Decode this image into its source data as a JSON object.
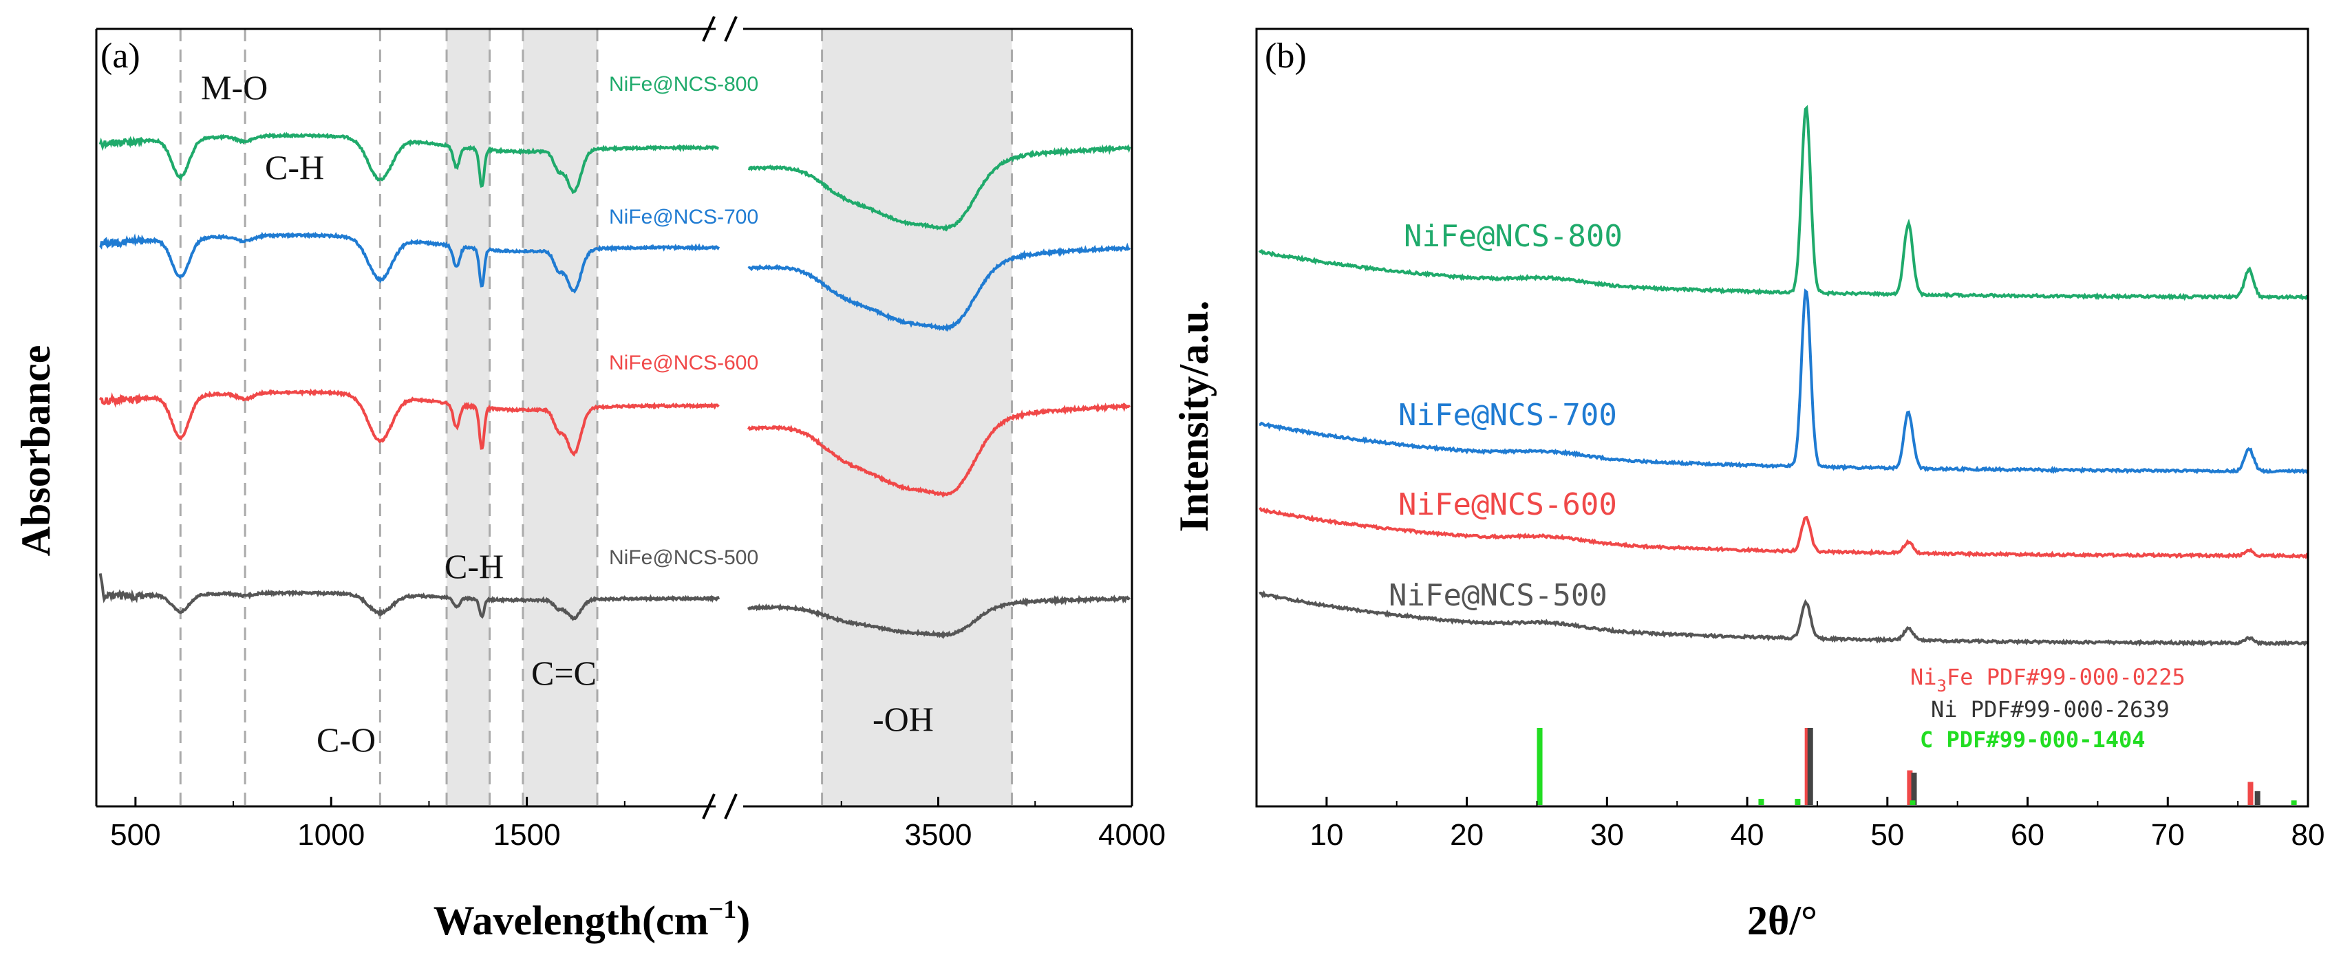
{
  "chart_data": [
    {
      "panel": "(a)",
      "type": "line",
      "xlabel": "Wavelength(cm⁻¹)",
      "ylabel": "Absorbance",
      "xlim_segments": [
        [
          400,
          2000
        ],
        [
          3000,
          4000
        ]
      ],
      "axis_break": true,
      "xticks": [
        500,
        1000,
        1500,
        3500,
        4000
      ],
      "tick_labels": [
        "500",
        "1000",
        "1500",
        "3500",
        "4000"
      ],
      "vlines": [
        615,
        780,
        1125,
        1295,
        1405,
        1490,
        1680,
        3200,
        3690
      ],
      "shaded_regions": [
        [
          1295,
          1405
        ],
        [
          1490,
          1680
        ],
        [
          3200,
          3690
        ]
      ],
      "annotations": [
        "M-O",
        "C-H",
        "C-O",
        "C-H",
        "C=C",
        "-OH"
      ],
      "series": [
        {
          "name": "NiFe@NCS-800",
          "color": "#1faa6b",
          "offset": 3
        },
        {
          "name": "NiFe@NCS-700",
          "color": "#1f7bd2",
          "offset": 2
        },
        {
          "name": "NiFe@NCS-600",
          "color": "#f04848",
          "offset": 1
        },
        {
          "name": "NiFe@NCS-500",
          "color": "#555555",
          "offset": 0
        }
      ],
      "absorption_bands_cm-1": [
        615,
        1125,
        1320,
        1385,
        1620,
        3430,
        3550
      ]
    },
    {
      "panel": "(b)",
      "type": "line",
      "xlabel": "2θ/°",
      "ylabel": "Intensity/a.u.",
      "xlim": [
        5,
        80
      ],
      "xticks": [
        10,
        20,
        30,
        40,
        50,
        60,
        70,
        80
      ],
      "tick_labels": [
        "10",
        "20",
        "30",
        "40",
        "50",
        "60",
        "70",
        "80"
      ],
      "series": [
        {
          "name": "NiFe@NCS-800",
          "color": "#1faa6b",
          "peaks": [
            {
              "x": 44.2,
              "h": 1.0
            },
            {
              "x": 51.5,
              "h": 0.38
            },
            {
              "x": 75.8,
              "h": 0.15
            }
          ]
        },
        {
          "name": "NiFe@NCS-700",
          "color": "#1f7bd2",
          "peaks": [
            {
              "x": 44.2,
              "h": 0.95
            },
            {
              "x": 51.5,
              "h": 0.3
            },
            {
              "x": 75.8,
              "h": 0.12
            }
          ]
        },
        {
          "name": "NiFe@NCS-600",
          "color": "#f04848",
          "peaks": [
            {
              "x": 44.2,
              "h": 0.33
            },
            {
              "x": 51.5,
              "h": 0.11
            },
            {
              "x": 75.8,
              "h": 0.05
            }
          ]
        },
        {
          "name": "NiFe@NCS-500",
          "color": "#555555",
          "peaks": [
            {
              "x": 44.2,
              "h": 0.35
            },
            {
              "x": 51.5,
              "h": 0.12
            },
            {
              "x": 75.8,
              "h": 0.05
            }
          ]
        }
      ],
      "reference_patterns": [
        {
          "label": "Ni₃Fe  PDF#99-000-0225",
          "label_prefix": "Ni",
          "label_sub": "3",
          "label_rest": "Fe  PDF#99-000-0225",
          "color": "#f04848",
          "lines": [
            {
              "x": 44.3,
              "h": 1.0
            },
            {
              "x": 51.6,
              "h": 0.45
            },
            {
              "x": 75.9,
              "h": 0.3
            }
          ]
        },
        {
          "label": "Ni  PDF#99-000-2639",
          "color": "#444444",
          "lines": [
            {
              "x": 44.5,
              "h": 1.0
            },
            {
              "x": 51.9,
              "h": 0.42
            },
            {
              "x": 76.4,
              "h": 0.18
            }
          ]
        },
        {
          "label": "C  PDF#99-000-1404",
          "color": "#22dd22",
          "lines": [
            {
              "x": 25.2,
              "h": 1.0
            },
            {
              "x": 41.0,
              "h": 0.08
            },
            {
              "x": 43.6,
              "h": 0.08
            },
            {
              "x": 51.8,
              "h": 0.06
            },
            {
              "x": 79.0,
              "h": 0.06
            }
          ]
        }
      ]
    }
  ]
}
